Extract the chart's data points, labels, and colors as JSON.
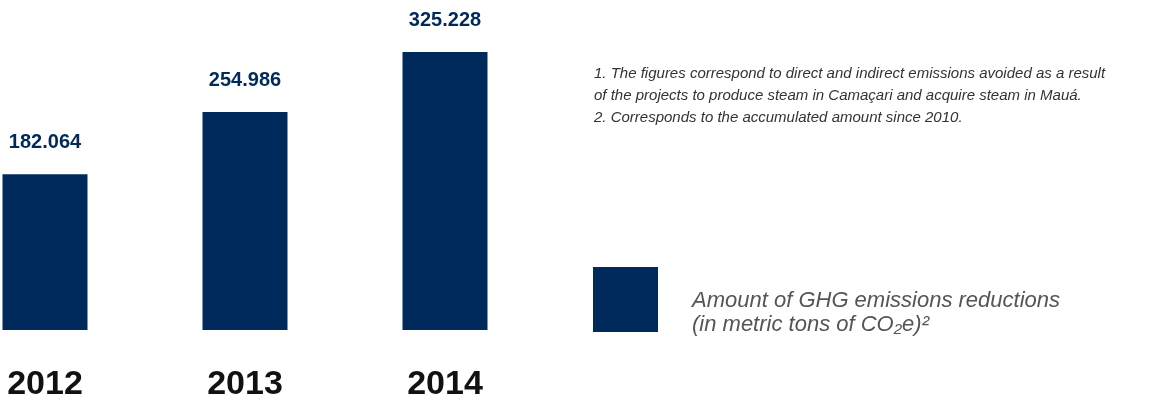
{
  "chart_data": {
    "type": "bar",
    "categories": [
      "2012",
      "2013",
      "2014"
    ],
    "series": [
      {
        "name": "Amount of GHG emissions reductions (in metric tons of CO₂e)²",
        "color": "#012a5c",
        "values": [
          182064,
          254986,
          325228
        ],
        "value_labels": [
          "182.064",
          "254.986",
          "325.228"
        ]
      }
    ],
    "annotations": [
      "1. The figures correspond to direct and indirect emissions avoided as a result of the projects to produce steam in Camaçari and acquire steam in Mauá.",
      "2. Corresponds to the accumulated amount since 2010."
    ],
    "legend": "right"
  }
}
